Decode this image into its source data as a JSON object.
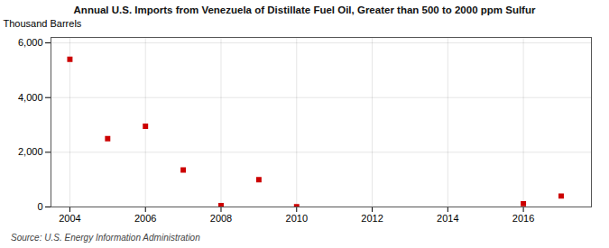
{
  "chart_data": {
    "type": "scatter",
    "title": "Annual U.S. Imports from Venezuela of Distillate Fuel Oil, Greater than 500 to 2000 ppm Sulfur",
    "ylabel": "Thousand Barrels",
    "source": "Source: U.S. Energy Information Administration",
    "x": [
      2004,
      2005,
      2006,
      2007,
      2008,
      2009,
      2010,
      2016,
      2017
    ],
    "values": [
      5400,
      2500,
      2950,
      1350,
      50,
      1000,
      10,
      120,
      400
    ],
    "color": "#cc0000",
    "marker": "square",
    "xlim": [
      2003.5,
      2017.8
    ],
    "ylim": [
      0,
      6200
    ],
    "xticks": [
      2004,
      2006,
      2008,
      2010,
      2012,
      2014,
      2016
    ],
    "yticks": [
      0,
      {
        "value": 2000,
        "label": "2,000"
      },
      {
        "value": 4000,
        "label": "4,000"
      },
      {
        "value": 6000,
        "label": "6,000"
      }
    ],
    "grid": true
  }
}
